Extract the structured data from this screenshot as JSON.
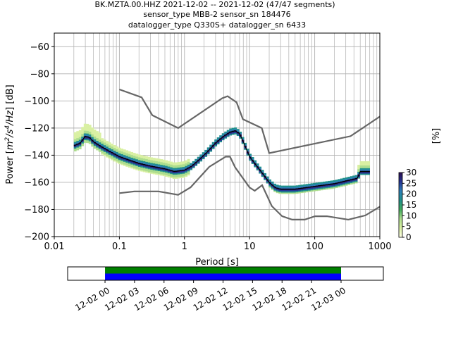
{
  "figure": {
    "title_lines": [
      "BK.MZTA.00.HHZ   2021-12-02 -- 2021-12-02  (47/47 segments)",
      "sensor_type MBB-2 sensor_sn 184476",
      "datalogger_type Q330S+ datalogger_sn 6433"
    ]
  },
  "chart_data": [
    {
      "type": "heatmap",
      "title": "",
      "xlabel": "Period [s]",
      "ylabel_parts": {
        "pre": "Power [",
        "unit1": "m",
        "sup1": "2",
        "mid1": "/s",
        "sup2": "4",
        "mid2": "/Hz",
        "post": "] [dB]"
      },
      "xscale": "log",
      "xlim": [
        0.01,
        1000
      ],
      "ylim": [
        -200,
        -50
      ],
      "grid": true,
      "x_ticks": [
        {
          "value": 0.01,
          "label": "0.01"
        },
        {
          "value": 0.1,
          "label": "0.1"
        },
        {
          "value": 1,
          "label": "1"
        },
        {
          "value": 10,
          "label": "10"
        },
        {
          "value": 100,
          "label": "100"
        },
        {
          "value": 1000,
          "label": "1000"
        }
      ],
      "y_ticks": [
        {
          "value": -60,
          "label": "−60"
        },
        {
          "value": -80,
          "label": "−80"
        },
        {
          "value": -100,
          "label": "−100"
        },
        {
          "value": -120,
          "label": "−120"
        },
        {
          "value": -140,
          "label": "−140"
        },
        {
          "value": -160,
          "label": "−160"
        },
        {
          "value": -180,
          "label": "−180"
        },
        {
          "value": -200,
          "label": "−200"
        }
      ],
      "noise_models": {
        "color": "#666666",
        "high": [
          [
            0.1,
            -91.5
          ],
          [
            0.22,
            -97.4
          ],
          [
            0.32,
            -110.5
          ],
          [
            0.8,
            -120
          ],
          [
            3.8,
            -98
          ],
          [
            4.6,
            -96.5
          ],
          [
            6.3,
            -101
          ],
          [
            7.9,
            -113.5
          ],
          [
            15.4,
            -120
          ],
          [
            20,
            -138.5
          ],
          [
            354.8,
            -126
          ],
          [
            1000,
            -111.5
          ]
        ],
        "low": [
          [
            0.1,
            -168
          ],
          [
            0.17,
            -166.7
          ],
          [
            0.4,
            -166.7
          ],
          [
            0.8,
            -169.2
          ],
          [
            1.24,
            -163.7
          ],
          [
            2.4,
            -148.6
          ],
          [
            4.3,
            -141.1
          ],
          [
            5.0,
            -141.1
          ],
          [
            6.0,
            -149
          ],
          [
            10,
            -163.8
          ],
          [
            12,
            -166.2
          ],
          [
            15.6,
            -162.1
          ],
          [
            21.9,
            -177.5
          ],
          [
            31.6,
            -185
          ],
          [
            45,
            -187.5
          ],
          [
            70,
            -187.5
          ],
          [
            101,
            -185
          ],
          [
            154,
            -185
          ],
          [
            328,
            -187.5
          ],
          [
            600,
            -184.4
          ],
          [
            1000,
            -178
          ]
        ]
      },
      "mode_line": {
        "color": "#000000",
        "points": [
          [
            0.02,
            -133
          ],
          [
            0.025,
            -131
          ],
          [
            0.03,
            -126
          ],
          [
            0.035,
            -127
          ],
          [
            0.04,
            -130
          ],
          [
            0.05,
            -133
          ],
          [
            0.07,
            -137
          ],
          [
            0.1,
            -141
          ],
          [
            0.15,
            -144
          ],
          [
            0.2,
            -146
          ],
          [
            0.3,
            -148
          ],
          [
            0.5,
            -150
          ],
          [
            0.7,
            -152
          ],
          [
            1.0,
            -151
          ],
          [
            1.3,
            -148
          ],
          [
            1.7,
            -143
          ],
          [
            2.2,
            -138
          ],
          [
            3.0,
            -131
          ],
          [
            4.0,
            -126
          ],
          [
            5.0,
            -123
          ],
          [
            6.0,
            -122
          ],
          [
            7.0,
            -124
          ],
          [
            8.0,
            -130
          ],
          [
            9.0,
            -136
          ],
          [
            10,
            -141
          ],
          [
            12,
            -146
          ],
          [
            15,
            -152
          ],
          [
            20,
            -160
          ],
          [
            25,
            -164
          ],
          [
            30,
            -165
          ],
          [
            50,
            -165
          ],
          [
            100,
            -163
          ],
          [
            200,
            -161
          ],
          [
            300,
            -159
          ],
          [
            450,
            -157
          ],
          [
            500,
            -152
          ],
          [
            700,
            -152
          ]
        ]
      },
      "colorbar": {
        "label": "[%]",
        "range": [
          0,
          30
        ],
        "ticks": [
          {
            "value": 0,
            "label": "0"
          },
          {
            "value": 5,
            "label": "5"
          },
          {
            "value": 10,
            "label": "10"
          },
          {
            "value": 15,
            "label": "15"
          },
          {
            "value": 20,
            "label": "20"
          },
          {
            "value": 25,
            "label": "25"
          },
          {
            "value": 30,
            "label": "30"
          }
        ],
        "colors": [
          "#ffffe5",
          "#d9f0a3",
          "#addd8e",
          "#41ab5d",
          "#21918c",
          "#2c7fb8",
          "#253494",
          "#2d0f4f"
        ]
      }
    },
    {
      "type": "timeline",
      "title": "",
      "tick_labels": [
        "12-02 00",
        "12-02 03",
        "12-02 06",
        "12-02 09",
        "12-02 12",
        "12-02 15",
        "12-02 18",
        "12-02 21",
        "12-03 00"
      ],
      "range_hours": [
        -3.8,
        28.3
      ],
      "coverage_hours": [
        0,
        24
      ],
      "bars": [
        {
          "name": "",
          "color": "#008000",
          "start_hours": 0,
          "end_hours": 24
        },
        {
          "name": "",
          "color": "#0000ff",
          "start_hours": 0,
          "end_hours": 24
        }
      ]
    }
  ]
}
